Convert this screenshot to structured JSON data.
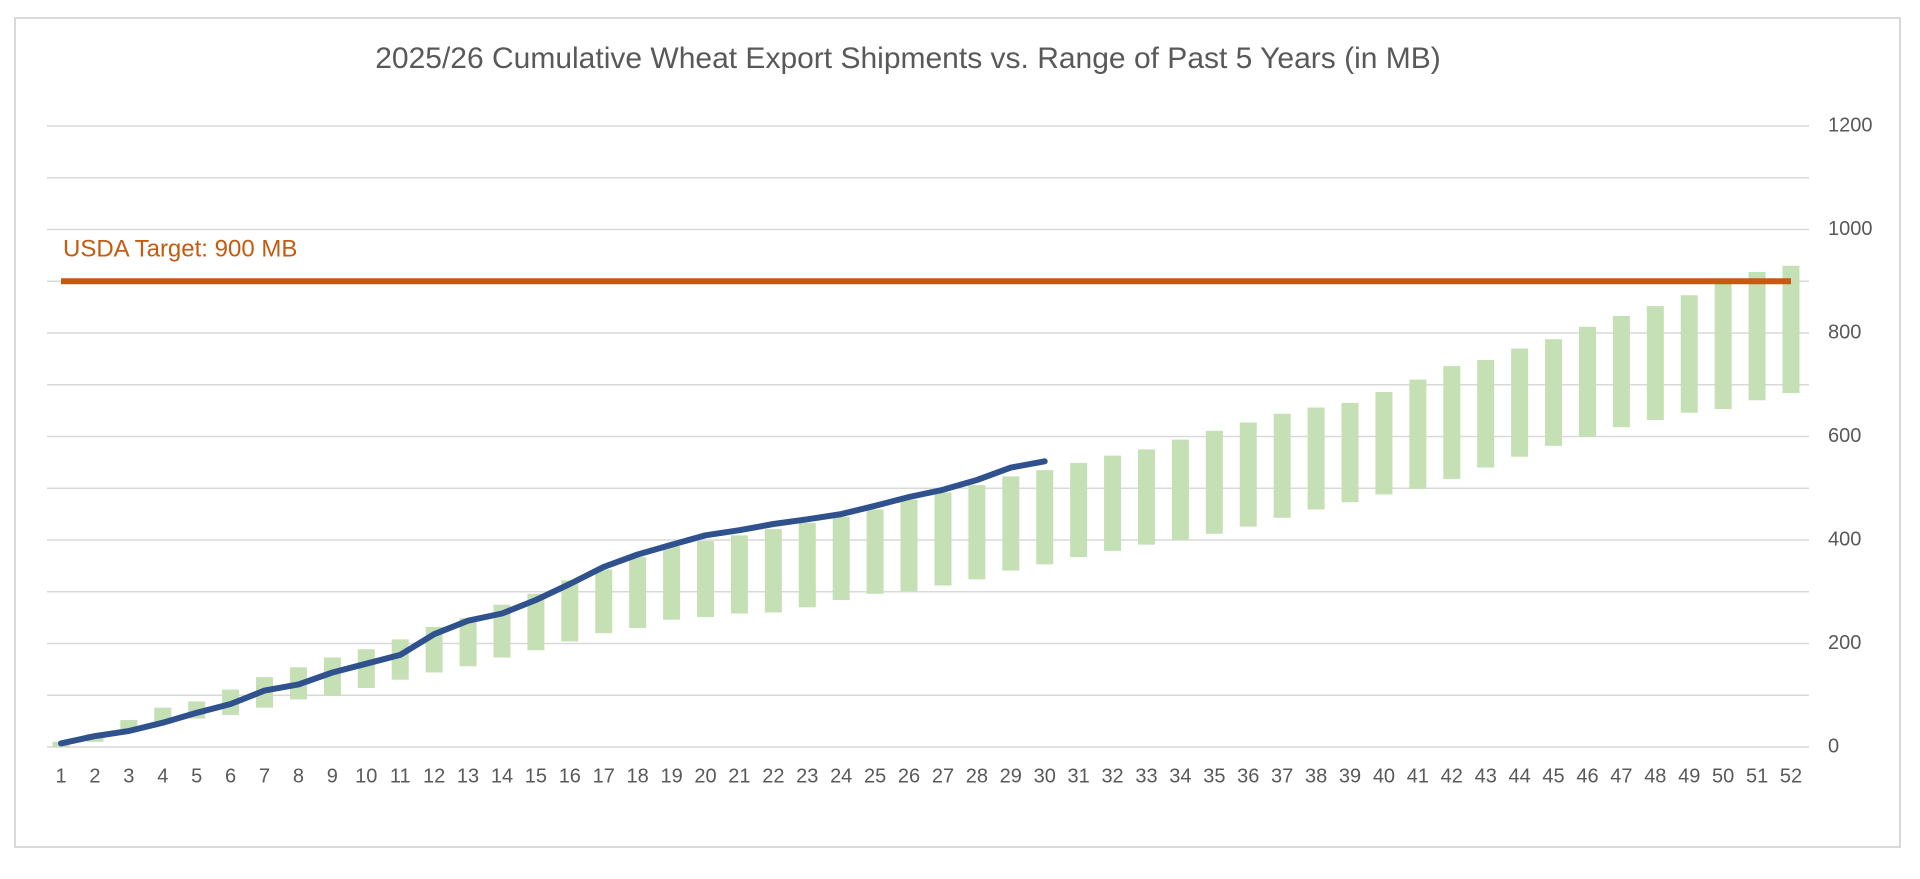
{
  "chart_data": {
    "type": "range-bar-line",
    "title": "2025/26 Cumulative Wheat Export Shipments vs. Range of Past 5 Years (in MB)",
    "categories": [
      "1",
      "2",
      "3",
      "4",
      "5",
      "6",
      "7",
      "8",
      "9",
      "10",
      "11",
      "12",
      "13",
      "14",
      "15",
      "16",
      "17",
      "18",
      "19",
      "20",
      "21",
      "22",
      "23",
      "24",
      "25",
      "26",
      "27",
      "28",
      "29",
      "30",
      "31",
      "32",
      "33",
      "34",
      "35",
      "36",
      "37",
      "38",
      "39",
      "40",
      "41",
      "42",
      "43",
      "44",
      "45",
      "46",
      "47",
      "48",
      "49",
      "50",
      "51",
      "52"
    ],
    "range": {
      "color": "#c5e0b4",
      "low": [
        0,
        10,
        30,
        45,
        55,
        62,
        76,
        92,
        99,
        114,
        130,
        144,
        156,
        173,
        187,
        204,
        220,
        230,
        246,
        251,
        258,
        260,
        270,
        284,
        296,
        301,
        312,
        324,
        341,
        353,
        367,
        379,
        391,
        400,
        412,
        426,
        443,
        459,
        473,
        488,
        499,
        518,
        540,
        561,
        582,
        599,
        618,
        632,
        646,
        653,
        670,
        684
      ],
      "high": [
        10,
        25,
        52,
        76,
        88,
        111,
        135,
        154,
        173,
        189,
        208,
        232,
        249,
        275,
        296,
        322,
        343,
        367,
        388,
        398,
        409,
        421,
        433,
        445,
        459,
        478,
        492,
        506,
        523,
        535,
        549,
        563,
        575,
        594,
        611,
        627,
        644,
        656,
        665,
        686,
        710,
        736,
        748,
        770,
        788,
        812,
        833,
        852,
        873,
        895,
        918,
        930
      ]
    },
    "series": [
      {
        "color": "#2f528f",
        "values": [
          7,
          21,
          31,
          47,
          66,
          83,
          109,
          121,
          144,
          161,
          178,
          218,
          244,
          258,
          284,
          315,
          348,
          372,
          391,
          409,
          419,
          431,
          440,
          450,
          466,
          483,
          497,
          516,
          540,
          552,
          null,
          null,
          null,
          null,
          null,
          null,
          null,
          null,
          null,
          null,
          null,
          null,
          null,
          null,
          null,
          null,
          null,
          null,
          null,
          null,
          null,
          null
        ]
      }
    ],
    "reference_line": {
      "value": 900,
      "label": "USDA Target: 900 MB",
      "color": "#c55a11"
    },
    "ylim": [
      0,
      1200
    ],
    "yticks": [
      0,
      200,
      400,
      600,
      800,
      1000,
      1200
    ],
    "minor_grid": [
      100,
      300,
      500,
      700,
      900,
      1100
    ],
    "grid": true
  }
}
